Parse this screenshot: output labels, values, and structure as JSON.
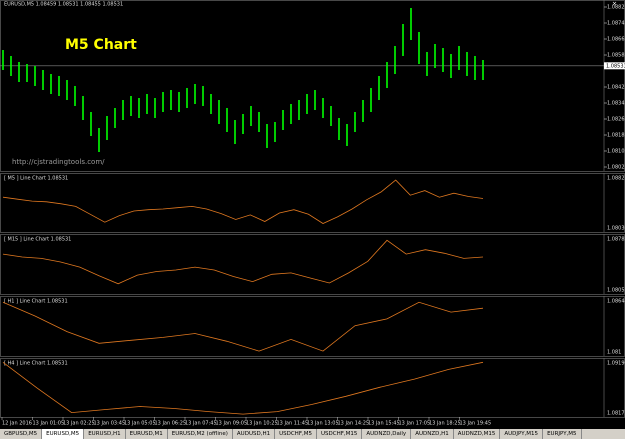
{
  "main_chart": {
    "header": "EURUSD,M5  1.08459 1.08531 1.08455 1.08531",
    "annotation": "M5 Chart",
    "watermark": "http://cjstradingtools.com/",
    "color": "#00ff00",
    "ylim": [
      1.08,
      1.0885
    ],
    "yticks": [
      1.08825,
      1.08745,
      1.08665,
      1.08585,
      1.08425,
      1.08345,
      1.08265,
      1.08185,
      1.08105,
      1.08025
    ],
    "current_price": 1.08531,
    "high": [
      1.0861,
      1.0858,
      1.0855,
      1.0854,
      1.0853,
      1.0851,
      1.0849,
      1.0848,
      1.0846,
      1.0843,
      1.0838,
      1.083,
      1.0822,
      1.0828,
      1.0832,
      1.0836,
      1.0838,
      1.0837,
      1.0839,
      1.0837,
      1.084,
      1.0841,
      1.084,
      1.0842,
      1.0844,
      1.0843,
      1.0839,
      1.0836,
      1.0832,
      1.0826,
      1.0829,
      1.0833,
      1.083,
      1.0824,
      1.0825,
      1.0831,
      1.0834,
      1.0836,
      1.0839,
      1.0841,
      1.0837,
      1.0833,
      1.0827,
      1.0824,
      1.083,
      1.0836,
      1.0842,
      1.0848,
      1.0855,
      1.0863,
      1.0874,
      1.0882,
      1.087,
      1.086,
      1.0864,
      1.0862,
      1.0859,
      1.0863,
      1.086,
      1.0858,
      1.0856
    ],
    "low": [
      1.0851,
      1.0848,
      1.0845,
      1.0845,
      1.0843,
      1.0841,
      1.0839,
      1.0838,
      1.0836,
      1.0833,
      1.0826,
      1.0818,
      1.081,
      1.0816,
      1.0822,
      1.0826,
      1.0828,
      1.0827,
      1.0829,
      1.0827,
      1.083,
      1.0831,
      1.083,
      1.0832,
      1.0834,
      1.0833,
      1.0829,
      1.0824,
      1.082,
      1.0814,
      1.0819,
      1.0823,
      1.082,
      1.0812,
      1.0815,
      1.0821,
      1.0824,
      1.0826,
      1.0829,
      1.0831,
      1.0827,
      1.0823,
      1.0816,
      1.0813,
      1.082,
      1.0825,
      1.083,
      1.0836,
      1.0842,
      1.0849,
      1.0858,
      1.0866,
      1.0854,
      1.0848,
      1.0852,
      1.085,
      1.0847,
      1.0851,
      1.0848,
      1.0846,
      1.0846
    ]
  },
  "subwindows": [
    {
      "label": "[ M5 ] Line Chart  1.08531",
      "color": "#e07820",
      "ylim": [
        1.08036,
        1.08827
      ],
      "values": [
        1.0852,
        1.0849,
        1.0846,
        1.0845,
        1.0842,
        1.0838,
        1.0826,
        1.0814,
        1.0824,
        1.0831,
        1.0833,
        1.0834,
        1.0836,
        1.0838,
        1.0834,
        1.0827,
        1.0818,
        1.0825,
        1.0815,
        1.0828,
        1.0833,
        1.0826,
        1.0812,
        1.0822,
        1.0834,
        1.0848,
        1.086,
        1.0878,
        1.0855,
        1.0862,
        1.0852,
        1.0858,
        1.0853,
        1.085
      ]
    },
    {
      "label": "[ M15 ] Line Chart  1.08531",
      "color": "#e07820",
      "ylim": [
        1.0805,
        1.08782
      ],
      "values": [
        1.0856,
        1.0852,
        1.085,
        1.0845,
        1.0838,
        1.0826,
        1.0815,
        1.0827,
        1.0832,
        1.0834,
        1.0838,
        1.0834,
        1.0825,
        1.0818,
        1.0828,
        1.083,
        1.0823,
        1.0816,
        1.083,
        1.0846,
        1.0875,
        1.0856,
        1.0862,
        1.0857,
        1.085,
        1.0852
      ]
    },
    {
      "label": "[ H1 ] Line Chart  1.08531",
      "color": "#e07820",
      "ylim": [
        1.081,
        1.08644
      ],
      "values": [
        1.0862,
        1.0848,
        1.0832,
        1.082,
        1.0823,
        1.0826,
        1.083,
        1.0822,
        1.0812,
        1.0824,
        1.0812,
        1.0838,
        1.0845,
        1.0862,
        1.0852,
        1.0856
      ]
    },
    {
      "label": "[ H4 ] Line Chart  1.08531",
      "color": "#e07820",
      "ylim": [
        1.08172,
        1.09196
      ],
      "values": [
        1.0919,
        1.0868,
        1.082,
        1.0826,
        1.0832,
        1.0828,
        1.0822,
        1.0817,
        1.0822,
        1.0836,
        1.0852,
        1.087,
        1.0886,
        1.0905,
        1.0919
      ]
    }
  ],
  "time_labels": [
    "12 Jan 2016",
    "13 Jan 01:05",
    "13 Jan 02:25",
    "13 Jan 03:45",
    "13 Jan 05:05",
    "13 Jan 06:25",
    "13 Jan 07:45",
    "13 Jan 09:05",
    "13 Jan 10:25",
    "13 Jan 11:45",
    "13 Jan 13:05",
    "13 Jan 14:25",
    "13 Jan 15:45",
    "13 Jan 17:05",
    "13 Jan 18:25",
    "13 Jan 19:45"
  ],
  "tabs": [
    "GBPUSD,M5",
    "EURUSD,M5",
    "EURUSD,H1",
    "EURUSD,M1",
    "EURUSD,M2 (offline)",
    "AUDUSD,H1",
    "USDCHF,M5",
    "USDCHF,M15",
    "AUDNZD,Daily",
    "AUDNZD,H1",
    "AUDNZD,M15",
    "AUDJPY,M15",
    "EURJPY,M5"
  ],
  "active_tab": 1
}
